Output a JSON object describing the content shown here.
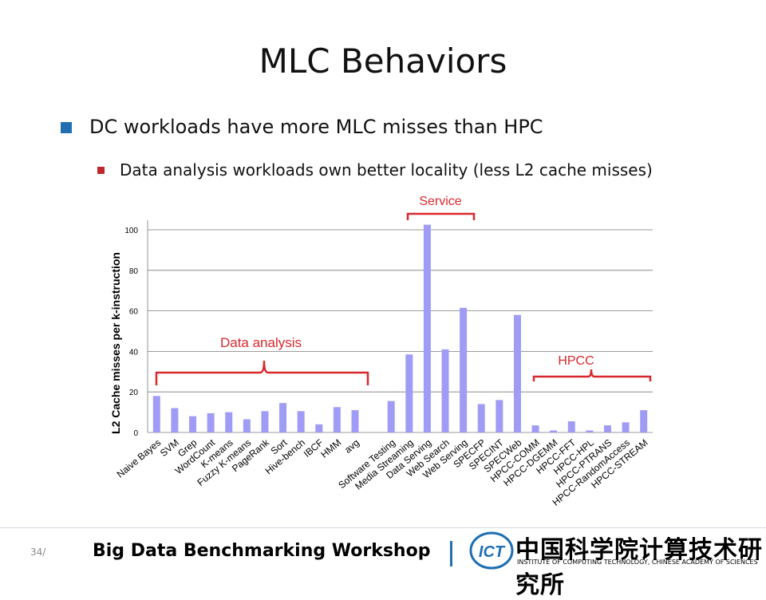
{
  "slide": {
    "title": "MLC Behaviors",
    "bullet1": "DC workloads have more MLC misses than HPC",
    "bullet2": "Data analysis workloads own better locality (less L2 cache misses)"
  },
  "annotations": {
    "service": "Service",
    "data_analysis": "Data analysis",
    "hpcc": "HPCC"
  },
  "footer": {
    "page": "34/",
    "title": "Big Data Benchmarking Workshop",
    "org_cn": "中国科学院计算技术研究所",
    "org_en": "INSTITUTE OF COMPUTING TECHNOLOGY, CHINESE ACADEMY OF SCIENCES",
    "logo_text": "ICT"
  },
  "colors": {
    "bar": "#a09cf5",
    "bracket": "#d8282d",
    "accent": "#1f6fb2"
  },
  "chart_data": {
    "type": "bar",
    "ylabel": "L2 Cache misses per k-instruction",
    "ylim": [
      0,
      100
    ],
    "yticks": [
      0,
      20,
      40,
      60,
      80,
      100
    ],
    "grid": true,
    "categories": [
      "Naive Bayes",
      "SVM",
      "Grep",
      "WordCount",
      "K-means",
      "Fuzzy K-means",
      "PageRank",
      "Sort",
      "Hive-bench",
      "IBCF",
      "HMM",
      "avg",
      "",
      "Software Testing",
      "Media Streaming",
      "Data Serving",
      "Web Search",
      "Web Serving",
      "SPECFP",
      "SPECINT",
      "SPECWeb",
      "HPCC-COMM",
      "HPCC-DGEMM",
      "HPCC-FFT",
      "HPCC-HPL",
      "HPCC-PTRANS",
      "HPCC-RandomAccess",
      "HPCC-STREAM"
    ],
    "values": [
      18,
      12,
      8,
      9.5,
      10,
      6.5,
      10.5,
      14.5,
      10.5,
      4,
      12.5,
      11,
      null,
      15.5,
      38.5,
      102.5,
      41,
      61.5,
      14,
      16,
      58,
      3.5,
      1,
      5.5,
      1,
      3.5,
      5,
      11
    ]
  }
}
